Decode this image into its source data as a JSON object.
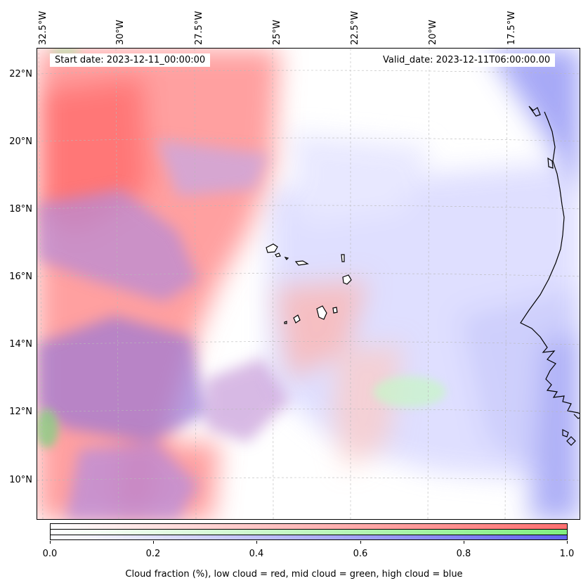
{
  "map": {
    "start_date": "Start date: 2023-12-11_00:00:00",
    "valid_date": "Valid_date: 2023-12-11T06:00:00.00",
    "longitude_labels": [
      "32.5°W",
      "30°W",
      "27.5°W",
      "25°W",
      "22.5°W",
      "20°W",
      "17.5°W"
    ],
    "latitude_labels": [
      "22°N",
      "20°N",
      "18°N",
      "16°N",
      "14°N",
      "12°N",
      "10°N"
    ],
    "gridlines": true,
    "features": [
      "Cape Verde islands",
      "West African coastline"
    ]
  },
  "colorbar": {
    "ticks": [
      "0.0",
      "0.2",
      "0.4",
      "0.6",
      "0.8",
      "1.0"
    ],
    "title": "Cloud fraction (%), low cloud = red, mid cloud = green, high cloud = blue",
    "colors": {
      "low": "#ff6b6b",
      "mid": "#80ee80",
      "high": "#6464ee"
    }
  }
}
